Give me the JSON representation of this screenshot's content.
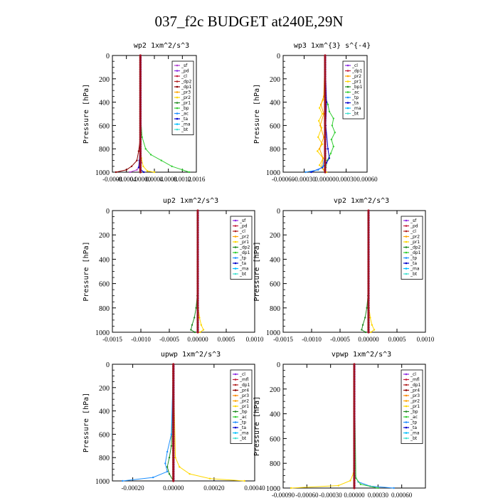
{
  "page_title": "037_f2c  BUDGET at240E,29N",
  "chart_data": [
    {
      "type": "line",
      "title": "wp2   1xm^2/s^3",
      "ylabel": "Pressure [hPa]",
      "xlim": [
        -0.0008,
        0.0016
      ],
      "ylim": [
        1000,
        0
      ],
      "xticks": [
        -0.0008,
        -0.0004,
        0.0,
        0.0004,
        0.0008,
        0.0012,
        0.0016
      ],
      "xtick_labels": [
        "-0.0008",
        "-0.0004",
        "0.00000",
        "0.0004",
        "0.0008",
        "0.0012",
        "0.0016"
      ],
      "yticks": [
        0,
        200,
        400,
        600,
        800,
        1000
      ],
      "legend": [
        "_sf",
        "_pd",
        "_cl",
        "_dp2",
        "_dp1",
        "_pr3",
        "_pr2",
        "_pr1",
        "_bp",
        "_ac",
        "_ta",
        "_ma",
        "_bt"
      ],
      "colors": [
        "#b040d0",
        "#8b2be2",
        "#c41e3a",
        "#b22222",
        "#8b0000",
        "#ffa500",
        "#ffd700",
        "#228b22",
        "#32cd32",
        "#1e90ff",
        "#0000cd",
        "#00bfff",
        "#40e0d0"
      ],
      "series": [
        {
          "name": "_sf",
          "p": [
            0,
            200,
            400,
            600,
            800,
            880,
            920,
            950,
            980,
            1000
          ],
          "v": [
            0,
            0,
            0,
            0,
            0,
            2e-05,
            3e-05,
            -3e-05,
            -0.0001,
            -0.0003
          ]
        },
        {
          "name": "_dp1",
          "p": [
            0,
            400,
            700,
            820,
            900,
            950,
            980,
            1000
          ],
          "v": [
            0,
            0,
            0,
            -5e-05,
            -0.0001,
            -0.00025,
            -0.0004,
            -0.0007
          ]
        },
        {
          "name": "_pr2",
          "p": [
            0,
            700,
            880,
            950,
            990,
            1000
          ],
          "v": [
            0,
            0,
            3e-05,
            8e-05,
            0.0002,
            0.0004
          ]
        },
        {
          "name": "_bp",
          "p": [
            0,
            500,
            700,
            800,
            850,
            900,
            950,
            980,
            1000
          ],
          "v": [
            0,
            0,
            5e-05,
            0.00015,
            0.0003,
            0.0006,
            0.0009,
            0.0012,
            0.0014
          ]
        },
        {
          "name": "_ta",
          "p": [
            0,
            800,
            900,
            960,
            1000
          ],
          "v": [
            0,
            -1e-05,
            -3e-05,
            -5e-05,
            0.0001
          ]
        }
      ]
    },
    {
      "type": "line",
      "title": "wp3   1xm^{3} s^{-4}",
      "ylabel": "Pressure [hPa]",
      "xlim": [
        -0.0006,
        0.0006
      ],
      "ylim": [
        1000,
        0
      ],
      "xticks": [
        -0.0006,
        -0.0003,
        0.0,
        0.0003,
        0.0006
      ],
      "xtick_labels": [
        "-0.00060",
        "-0.00030",
        "0.00000",
        "0.00030",
        "0.00060"
      ],
      "yticks": [
        0,
        200,
        400,
        600,
        800,
        1000
      ],
      "legend": [
        "_cl",
        "_dp1",
        "_pr2",
        "_pr1",
        "_bp1",
        "_ac",
        "_tp",
        "_ta",
        "_ma",
        "_bt"
      ],
      "colors": [
        "#8b2be2",
        "#c41e3a",
        "#ffa500",
        "#ffd700",
        "#228b22",
        "#32cd32",
        "#1e90ff",
        "#0000cd",
        "#00bfff",
        "#40e0d0"
      ],
      "series": [
        {
          "name": "_pr1",
          "p": [
            0,
            300,
            380,
            450,
            500,
            560,
            620,
            700,
            760,
            820,
            880,
            940,
            1000
          ],
          "v": [
            0,
            0,
            -3e-05,
            -8e-05,
            -4e-05,
            -9e-05,
            -5e-05,
            -0.0001,
            -4e-05,
            -0.00011,
            -3e-05,
            -8e-05,
            2e-05
          ]
        },
        {
          "name": "_pr2",
          "p": [
            0,
            350,
            420,
            500,
            600,
            700,
            800,
            880,
            960,
            1000
          ],
          "v": [
            0,
            -2e-05,
            -6e-05,
            -2e-05,
            -7e-05,
            -2e-05,
            -8e-05,
            -3e-05,
            -5e-05,
            0.0
          ]
        },
        {
          "name": "_ac",
          "p": [
            0,
            350,
            420,
            480,
            540,
            600,
            660,
            720,
            780,
            840,
            900,
            960,
            1000
          ],
          "v": [
            0,
            0,
            4e-05,
            6e-05,
            0.00012,
            0.0001,
            0.00014,
            9e-05,
            0.00012,
            8e-05,
            3e-05,
            1e-05,
            0.0
          ]
        },
        {
          "name": "_ta",
          "p": [
            0,
            400,
            600,
            800,
            880,
            920,
            960,
            1000
          ],
          "v": [
            0,
            2e-05,
            1e-05,
            4e-05,
            6e-05,
            2e-05,
            -4e-05,
            -0.0002
          ]
        },
        {
          "name": "_tp",
          "p": [
            0,
            800,
            950,
            980,
            1000
          ],
          "v": [
            0,
            1e-05,
            -3e-05,
            -0.0001,
            -0.00028
          ]
        }
      ]
    },
    {
      "type": "line",
      "title": "up2   1xm^2/s^3",
      "ylabel": "Pressure [hPa]",
      "xlim": [
        -0.0015,
        0.001
      ],
      "ylim": [
        1000,
        0
      ],
      "xticks": [
        -0.0015,
        -0.001,
        -0.0005,
        0.0,
        0.0005,
        0.001
      ],
      "xtick_labels": [
        "-0.0015",
        "-0.0010",
        "-0.0005",
        "0.00000",
        "0.0005",
        "0.0010"
      ],
      "yticks": [
        0,
        200,
        400,
        600,
        800,
        1000
      ],
      "legend": [
        "_sf",
        "_pd",
        "_cl",
        "_pr2",
        "_pr1",
        "_dp2",
        "_dp1",
        "_tp",
        "_ta",
        "_ma",
        "_bt"
      ],
      "colors": [
        "#8b2be2",
        "#c41e3a",
        "#b22222",
        "#ffa500",
        "#ffd700",
        "#228b22",
        "#32cd32",
        "#1e90ff",
        "#0000cd",
        "#00bfff",
        "#40e0d0"
      ],
      "series": [
        {
          "name": "_dp2",
          "p": [
            0,
            700,
            800,
            880,
            940,
            980,
            1000
          ],
          "v": [
            0,
            -1e-05,
            -3e-05,
            -6e-05,
            -0.0001,
            -0.00012,
            -5e-05
          ]
        },
        {
          "name": "_pr1",
          "p": [
            0,
            800,
            880,
            940,
            980,
            1000
          ],
          "v": [
            0,
            1e-05,
            3e-05,
            6e-05,
            0.0001,
            4e-05
          ]
        },
        {
          "name": "_sf",
          "p": [
            0,
            200,
            400,
            600,
            800,
            1000
          ],
          "v": [
            0,
            0,
            0,
            0,
            0,
            0
          ]
        }
      ]
    },
    {
      "type": "line",
      "title": "vp2   1xm^2/s^3",
      "ylabel": "Pressure [hPa]",
      "xlim": [
        -0.0015,
        0.001
      ],
      "ylim": [
        1000,
        0
      ],
      "xticks": [
        -0.0015,
        -0.001,
        -0.0005,
        0.0,
        0.0005,
        0.001
      ],
      "xtick_labels": [
        "-0.0015",
        "-0.0010",
        "-0.0005",
        "0.00000",
        "0.0005",
        "0.0010"
      ],
      "yticks": [
        0,
        200,
        400,
        600,
        800,
        1000
      ],
      "legend": [
        "_sf",
        "_pd",
        "_cl",
        "_pr2",
        "_pr1",
        "_dp2",
        "_dp1",
        "_tp",
        "_ta",
        "_ma",
        "_bt"
      ],
      "colors": [
        "#8b2be2",
        "#c41e3a",
        "#b22222",
        "#ffa500",
        "#ffd700",
        "#228b22",
        "#32cd32",
        "#1e90ff",
        "#0000cd",
        "#00bfff",
        "#40e0d0"
      ],
      "series": [
        {
          "name": "_dp2",
          "p": [
            0,
            700,
            800,
            880,
            940,
            980,
            1000
          ],
          "v": [
            0,
            -1e-05,
            -3e-05,
            -6e-05,
            -0.0001,
            -0.00012,
            -5e-05
          ]
        },
        {
          "name": "_pr1",
          "p": [
            0,
            800,
            880,
            940,
            980,
            1000
          ],
          "v": [
            0,
            1e-05,
            3e-05,
            6e-05,
            0.0001,
            4e-05
          ]
        },
        {
          "name": "_sf",
          "p": [
            0,
            200,
            400,
            600,
            800,
            1000
          ],
          "v": [
            0,
            0,
            0,
            0,
            0,
            0
          ]
        }
      ]
    },
    {
      "type": "line",
      "title": "upwp   1xm^2/s^3",
      "ylabel": "Pressure [hPa]",
      "xlim": [
        -0.0003,
        0.0004
      ],
      "ylim": [
        1000,
        0
      ],
      "xticks": [
        -0.0002,
        0.0,
        0.0002,
        0.0004
      ],
      "xtick_labels": [
        "-0.00020",
        "0.00000",
        "0.00020",
        "0.00040"
      ],
      "yticks": [
        0,
        200,
        400,
        600,
        800,
        1000
      ],
      "legend": [
        "_cl",
        "_mfl",
        "_dp1",
        "_pr4",
        "_pr3",
        "_pr2",
        "_pr1",
        "_bp",
        "_ac",
        "_tp",
        "_ta",
        "_ma",
        "_bt"
      ],
      "colors": [
        "#8b2be2",
        "#c41e3a",
        "#b22222",
        "#8b0000",
        "#ff8c00",
        "#ffa500",
        "#ffd700",
        "#228b22",
        "#32cd32",
        "#1e90ff",
        "#0000cd",
        "#00bfff",
        "#40e0d0"
      ],
      "series": [
        {
          "name": "_pr1",
          "p": [
            0,
            800,
            880,
            940,
            980,
            1000
          ],
          "v": [
            0,
            1e-05,
            3e-05,
            8e-05,
            0.00018,
            0.00035
          ]
        },
        {
          "name": "_bp",
          "p": [
            0,
            700,
            800,
            880,
            940,
            1000
          ],
          "v": [
            0,
            -1e-05,
            -2e-05,
            -3e-05,
            -2e-05,
            0.0
          ]
        },
        {
          "name": "_tp",
          "p": [
            0,
            600,
            750,
            850,
            920,
            970,
            1000
          ],
          "v": [
            0,
            -1e-05,
            -3e-05,
            -4e-05,
            -3e-05,
            -0.0001,
            -0.00025
          ]
        },
        {
          "name": "_cl",
          "p": [
            0,
            200,
            400,
            600,
            800,
            1000
          ],
          "v": [
            0,
            0,
            0,
            0,
            0,
            0
          ]
        }
      ]
    },
    {
      "type": "line",
      "title": "vpwp   1xm^2/s^3",
      "ylabel": "Pressure [hPa]",
      "xlim": [
        -0.0009,
        0.0009
      ],
      "ylim": [
        1000,
        0
      ],
      "xticks": [
        -0.0009,
        -0.0006,
        -0.0003,
        0.0,
        0.0003,
        0.0006
      ],
      "xtick_labels": [
        "-0.00090",
        "-0.00060",
        "-0.00030",
        "0.00000",
        "0.00030",
        "0.00060"
      ],
      "yticks": [
        0,
        200,
        400,
        600,
        800,
        1000
      ],
      "legend": [
        "_cl",
        "_mfl",
        "_dp1",
        "_pr4",
        "_pr3",
        "_pr2",
        "_pr1",
        "_bp",
        "_ac",
        "_tp",
        "_ta",
        "_ma",
        "_bt"
      ],
      "colors": [
        "#8b2be2",
        "#c41e3a",
        "#b22222",
        "#8b0000",
        "#ff8c00",
        "#ffa500",
        "#ffd700",
        "#228b22",
        "#32cd32",
        "#1e90ff",
        "#0000cd",
        "#00bfff",
        "#40e0d0"
      ],
      "series": [
        {
          "name": "_pr1",
          "p": [
            0,
            880,
            940,
            980,
            1000
          ],
          "v": [
            0,
            -1e-05,
            -5e-05,
            -0.0002,
            -0.0008
          ]
        },
        {
          "name": "_tp",
          "p": [
            0,
            900,
            950,
            985,
            1000
          ],
          "v": [
            0,
            1e-05,
            5e-05,
            0.0002,
            0.0005
          ]
        },
        {
          "name": "_ac",
          "p": [
            0,
            920,
            970,
            1000
          ],
          "v": [
            0,
            2e-05,
            8e-05,
            0.0003
          ]
        },
        {
          "name": "_cl",
          "p": [
            0,
            200,
            400,
            600,
            800,
            1000
          ],
          "v": [
            0,
            0,
            0,
            0,
            0,
            0
          ]
        }
      ]
    }
  ]
}
